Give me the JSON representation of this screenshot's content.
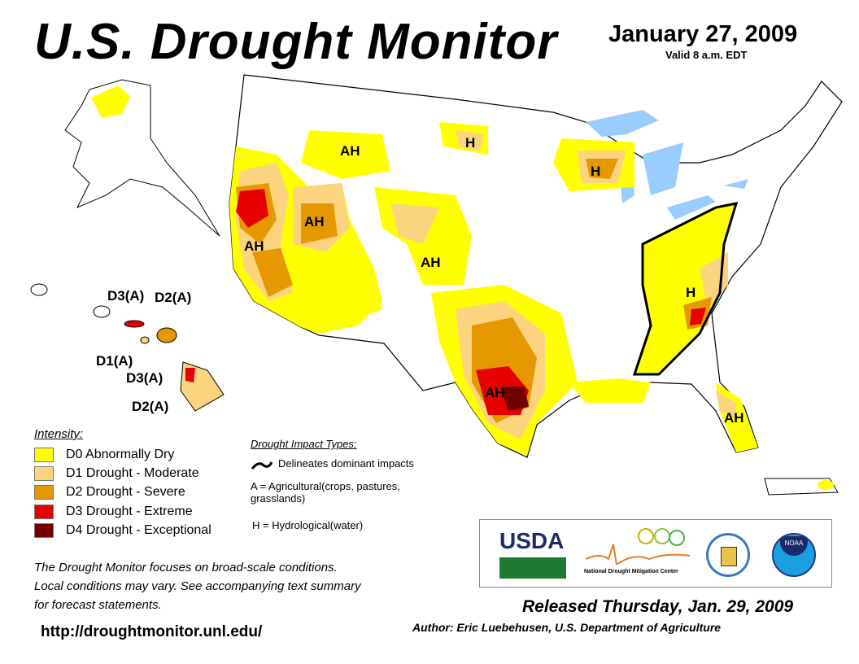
{
  "header": {
    "title": "U.S. Drought Monitor",
    "date": "January 27, 2009",
    "valid": "Valid 8 a.m. EDT"
  },
  "colors": {
    "D0": "#FFFF00",
    "D1": "#FCD37F",
    "D2": "#E69800",
    "D3": "#E60000",
    "D4": "#730000",
    "water": "#99CCFF"
  },
  "map_labels": {
    "ah_nw": "AH",
    "ah_nv": "AH",
    "ah_ca": "AH",
    "ah_co": "AH",
    "ah_tx": "AH",
    "ah_fl": "AH",
    "h_nd": "H",
    "h_wi": "H",
    "h_se": "H",
    "hi_d3a_1": "D3(A)",
    "hi_d2a_1": "D2(A)",
    "hi_d1a": "D1(A)",
    "hi_d3a_2": "D3(A)",
    "hi_d2a_2": "D2(A)"
  },
  "legend": {
    "title": "Intensity:",
    "items": [
      {
        "label": "D0 Abnormally Dry",
        "color": "#FFFF00"
      },
      {
        "label": "D1 Drought - Moderate",
        "color": "#FCD37F"
      },
      {
        "label": "D2 Drought - Severe",
        "color": "#E69800"
      },
      {
        "label": "D3 Drought - Extreme",
        "color": "#E60000"
      },
      {
        "label": "D4 Drought - Exceptional",
        "color": "#730000"
      }
    ]
  },
  "impacts": {
    "title": "Drought Impact Types:",
    "delineates": "Delineates dominant impacts",
    "a": "A = Agricultural(crops, pastures, grasslands)",
    "h": "H = Hydrological(water)"
  },
  "note": [
    "The Drought Monitor focuses on broad-scale conditions.",
    "Local conditions may vary. See accompanying text summary",
    "for forecast statements."
  ],
  "url": "http://droughtmonitor.unl.edu/",
  "logos": {
    "usda": "USDA",
    "ndmc": "National Drought Mitigation Center",
    "noaa": "NOAA"
  },
  "released": "Released Thursday, Jan. 29, 2009",
  "author": "Author: Eric Luebehusen, U.S. Department of Agriculture"
}
